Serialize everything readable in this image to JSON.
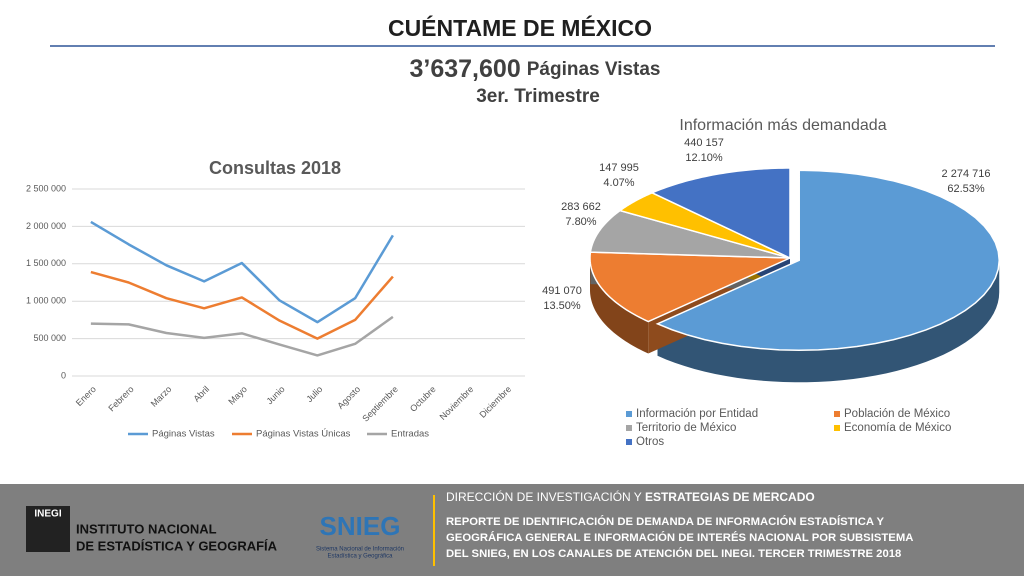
{
  "header": {
    "title": "CUÉNTAME DE MÉXICO",
    "headline_number": "3’637,600",
    "headline_text": "Páginas Vistas",
    "subtitle": "3er. Trimestre"
  },
  "chart_data": [
    {
      "type": "line",
      "title": "Consultas 2018",
      "categories": [
        "Enero",
        "Febrero",
        "Marzo",
        "Abril",
        "Mayo",
        "Junio",
        "Julio",
        "Agosto",
        "Septiembre",
        "Octubre",
        "Noviembre",
        "Diciembre"
      ],
      "series": [
        {
          "name": "Páginas Vistas",
          "color": "#5b9bd5",
          "values": [
            2060000,
            1760000,
            1480000,
            1265000,
            1510000,
            1010000,
            720000,
            1040000,
            1880000,
            null,
            null,
            null
          ]
        },
        {
          "name": "Páginas Vistas Únicas",
          "color": "#ed7d31",
          "values": [
            1390000,
            1250000,
            1040000,
            905000,
            1050000,
            740000,
            500000,
            750000,
            1330000,
            null,
            null,
            null
          ]
        },
        {
          "name": "Entradas",
          "color": "#a5a5a5",
          "values": [
            700000,
            690000,
            575000,
            510000,
            570000,
            420000,
            275000,
            430000,
            790000,
            null,
            null,
            null
          ]
        }
      ],
      "ylim": [
        0,
        2500000
      ],
      "yticks": [
        0,
        {
          "value": 500000,
          "label": "500 000"
        },
        {
          "value": 1000000,
          "label": "1 000 000"
        },
        {
          "value": 1500000,
          "label": "1 500 000"
        },
        {
          "value": 2000000,
          "label": "2 000 000"
        },
        {
          "value": 2500000,
          "label": "2 500 000"
        }
      ],
      "grid": true,
      "legend": "bottom"
    },
    {
      "type": "pie",
      "title": "Información más demandada",
      "categories": [
        "Información por Entidad",
        "Población de México",
        "Territorio de México",
        "Economía de México",
        "Otros"
      ],
      "values": [
        2274716,
        491070,
        283662,
        147995,
        440157
      ],
      "value_labels": [
        "2 274 716",
        "491 070",
        "283 662",
        "147 995",
        "440 157"
      ],
      "percents": [
        62.53,
        13.5,
        7.8,
        4.07,
        12.1
      ],
      "percent_labels": [
        "62.53%",
        "13.50%",
        "7.80%",
        "4.07%",
        "12.10%"
      ],
      "colors": [
        "#5b9bd5",
        "#ed7d31",
        "#a5a5a5",
        "#ffc000",
        "#4472c4"
      ],
      "legend": "bottom"
    }
  ],
  "footer": {
    "inegi_line1": "INSTITUTO NACIONAL",
    "inegi_line2": "DE ESTADÍSTICA Y GEOGRAFÍA",
    "inegi_logo": "INEGI",
    "snieg": "SNIEG",
    "snieg_line1": "Sistema Nacional de Información",
    "snieg_line2": "Estadística y Geográfica",
    "direction_plain": "DIRECCIÓN DE INVESTIGACIÓN Y ",
    "direction_bold": "ESTRATEGIAS DE MERCADO",
    "report_lines": [
      "REPORTE DE IDENTIFICACIÓN DE DEMANDA DE INFORMACIÓN ESTADÍSTICA  Y",
      "GEOGRÁFICA GENERAL E INFORMACIÓN DE INTERÉS NACIONAL POR SUBSISTEMA",
      "DEL SNIEG, EN LOS CANALES DE ATENCIÓN DEL INEGI. TERCER TRIMESTRE 2018"
    ]
  }
}
